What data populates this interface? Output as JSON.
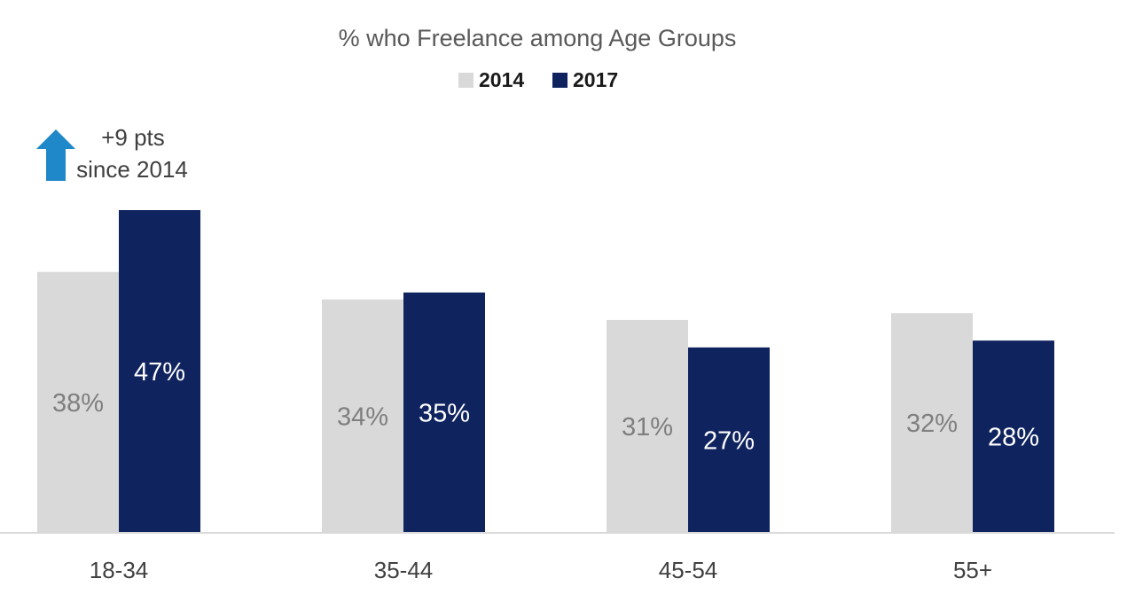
{
  "chart_data": {
    "type": "bar",
    "title": "% who Freelance among Age Groups",
    "categories": [
      "18-34",
      "35-44",
      "45-54",
      "55+"
    ],
    "series": [
      {
        "name": "2014",
        "values": [
          38,
          34,
          31,
          32
        ],
        "labels": [
          "38%",
          "34%",
          "31%",
          "32%"
        ],
        "color": "#d9d9d9",
        "label_color": "#7f7f7f"
      },
      {
        "name": "2017",
        "values": [
          47,
          35,
          27,
          28
        ],
        "labels": [
          "47%",
          "35%",
          "27%",
          "28%"
        ],
        "color": "#0f235e",
        "label_color": "#ffffff"
      }
    ],
    "ylim": [
      0,
      47
    ],
    "grid": false,
    "legend": "top-center",
    "annotation": {
      "line1": "+9 pts",
      "line2": "since 2014",
      "icon": "arrow-up-icon",
      "icon_color": "#1e88c8",
      "category": "18-34"
    }
  }
}
